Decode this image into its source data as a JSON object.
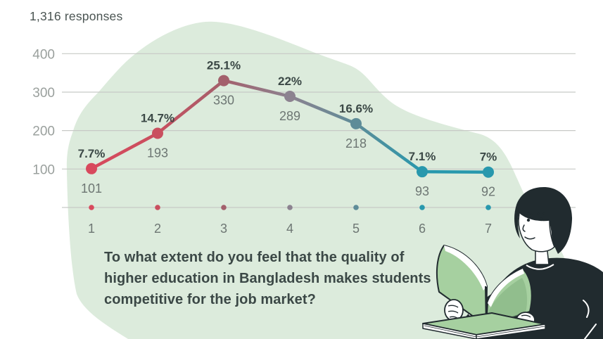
{
  "header": {
    "responses_label": "1,316 responses"
  },
  "chart_data": {
    "type": "line",
    "categories": [
      "1",
      "2",
      "3",
      "4",
      "5",
      "6",
      "7"
    ],
    "values": [
      101,
      193,
      330,
      289,
      218,
      93,
      92
    ],
    "percent_labels": [
      "7.7%",
      "14.7%",
      "25.1%",
      "22%",
      "16.6%",
      "7.1%",
      "7%"
    ],
    "point_colors": [
      "#d8495d",
      "#c94f5f",
      "#a3606c",
      "#8c8290",
      "#5e8c98",
      "#2898ad",
      "#2898ad"
    ],
    "title": "1,316 responses",
    "xlabel": "",
    "ylabel": "",
    "y_ticks": [
      100,
      200,
      300,
      400
    ],
    "ylim": [
      0,
      430
    ],
    "grid": true,
    "legend": false,
    "annotation": "To what extent do you feel that the quality of higher education in Bangladesh makes students competitive for the job market?"
  },
  "question": {
    "lines": [
      "To what extent do you feel that the quality of",
      "higher education in Bangladesh makes students",
      "competitive for the job market?"
    ]
  },
  "colors": {
    "blob": "#dcebdc",
    "grid_line": "#c7c9c6",
    "axis_label": "#9aa09d",
    "x_label": "#6d7673",
    "count_label": "#6d7673",
    "percent_label": "#3b4846",
    "question_text": "#3b4846",
    "title_text": "#4a5452",
    "illustration_dark": "#212b2f",
    "book_green": "#a6d0a0",
    "book_green_dark": "#7fae7e",
    "book_page": "#ffffff"
  },
  "illustration": {
    "label": "person-reading-book"
  }
}
